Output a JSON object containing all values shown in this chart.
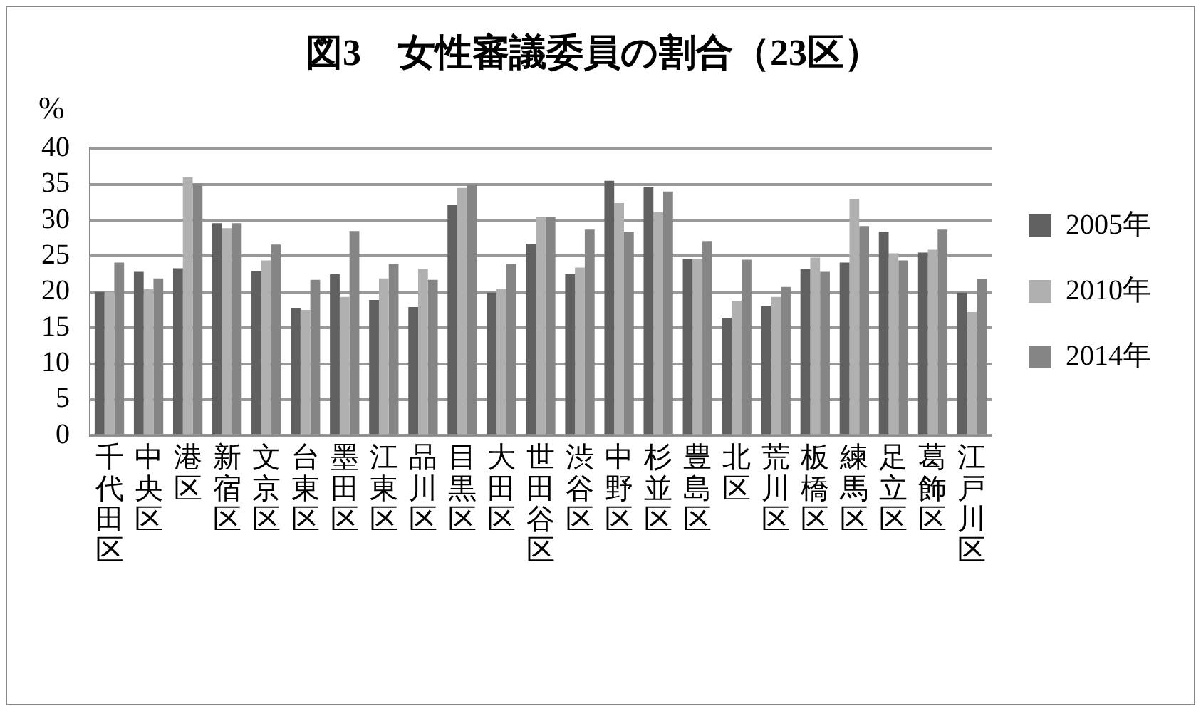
{
  "chart_data": {
    "type": "bar",
    "title": "図3　女性審議委員の割合（23区）",
    "ylabel": "%",
    "categories": [
      "千代田区",
      "中央区",
      "港区",
      "新宿区",
      "文京区",
      "台東区",
      "墨田区",
      "江東区",
      "品川区",
      "目黒区",
      "大田区",
      "世田谷区",
      "渋谷区",
      "中野区",
      "杉並区",
      "豊島区",
      "北区",
      "荒川区",
      "板橋区",
      "練馬区",
      "足立区",
      "葛飾区",
      "江戸川区"
    ],
    "series": [
      {
        "name": "2005年",
        "color": "#606060",
        "values": [
          20,
          22.8,
          23.3,
          29.6,
          22.9,
          17.8,
          22.5,
          18.9,
          17.9,
          32.1,
          19.9,
          26.7,
          22.5,
          35.5,
          34.6,
          24.6,
          16.4,
          18,
          23.2,
          24.1,
          28.4,
          25.5,
          19.9
        ]
      },
      {
        "name": "2010年",
        "color": "#b0b0b0",
        "values": [
          20,
          20.4,
          36,
          28.9,
          24.4,
          17.5,
          19.3,
          21.9,
          23.2,
          34.5,
          20.4,
          30.4,
          23.4,
          32.4,
          31.1,
          24.6,
          18.8,
          19.3,
          24.8,
          33,
          25.4,
          25.9,
          17.2
        ]
      },
      {
        "name": "2014年",
        "color": "#858585",
        "values": [
          24.1,
          21.9,
          35.1,
          29.6,
          26.6,
          21.7,
          28.5,
          23.9,
          21.7,
          35,
          23.9,
          30.4,
          28.7,
          28.4,
          34,
          27.1,
          24.5,
          20.7,
          22.8,
          29.2,
          24.4,
          28.7,
          21.8
        ]
      }
    ],
    "ylim": [
      0,
      40
    ],
    "yticks": [
      0,
      5,
      10,
      15,
      20,
      25,
      30,
      35,
      40
    ],
    "grid": "y",
    "legend": "right"
  }
}
